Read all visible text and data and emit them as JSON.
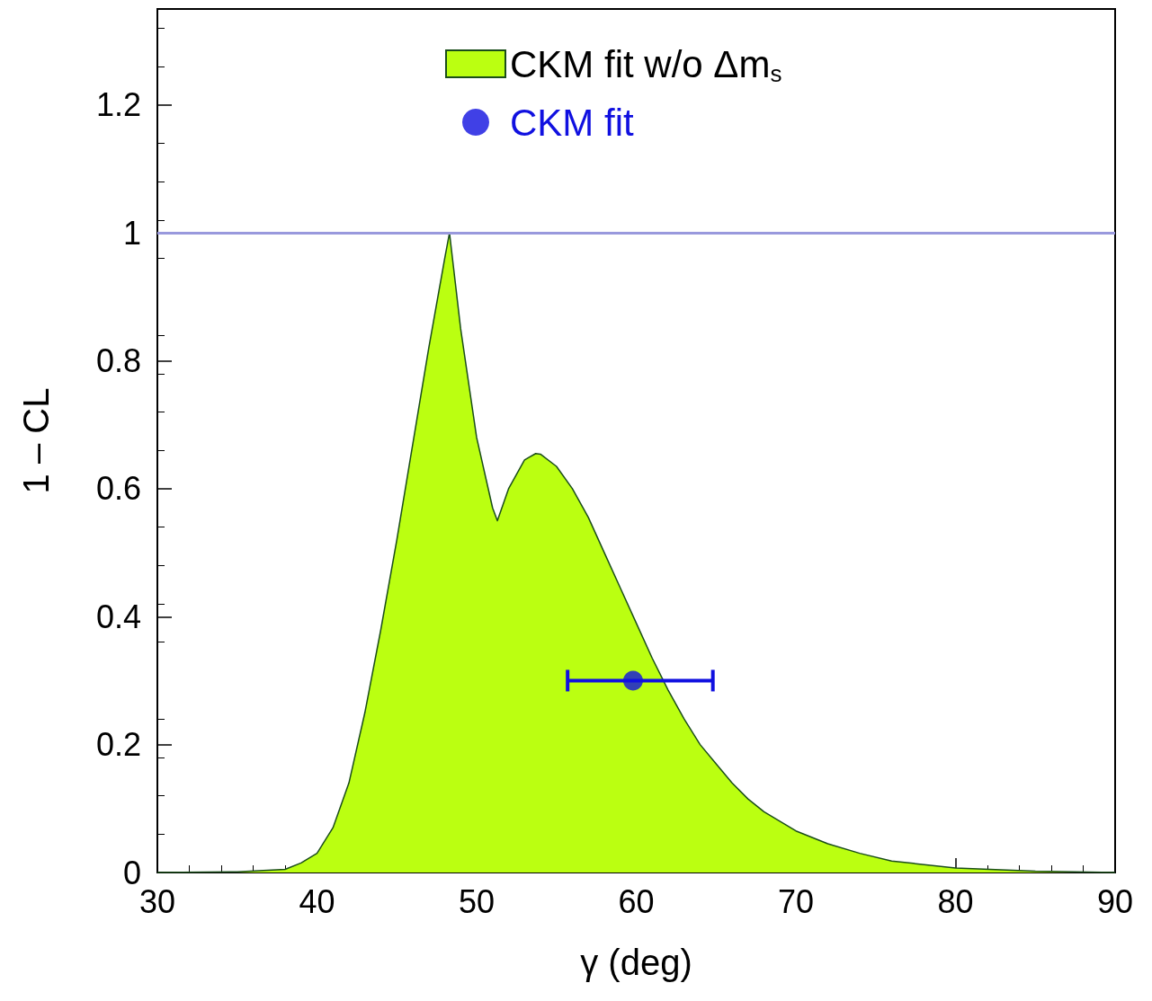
{
  "chart_data": {
    "type": "area",
    "xlabel": "γ (deg)",
    "ylabel": "1 – CL",
    "xlim": [
      30,
      90
    ],
    "xticks": [
      30,
      40,
      50,
      60,
      70,
      80,
      90
    ],
    "ylim": [
      0,
      1.35
    ],
    "yticks": [
      0,
      0.2,
      0.4,
      0.6,
      0.8,
      1,
      1.2
    ],
    "grid": false,
    "legend": "top",
    "ref_lines": [
      {
        "axis": "y",
        "value": 1,
        "color": "#9999dd"
      }
    ],
    "series": [
      {
        "name": "CKM fit w/o Δm$_{s}$",
        "type": "area",
        "color": "#bbff11",
        "x": [
          30,
          35,
          38,
          39,
          40,
          41,
          42,
          43,
          44,
          45,
          46,
          47,
          48,
          48.3,
          49,
          50,
          51,
          51.3,
          52,
          53,
          53.7,
          54,
          55,
          56,
          57,
          58,
          59,
          60,
          61,
          62,
          63,
          64,
          65,
          66,
          67,
          68,
          70,
          72,
          74,
          76,
          80,
          85,
          90
        ],
        "values": [
          0,
          0.001,
          0.005,
          0.015,
          0.03,
          0.07,
          0.14,
          0.25,
          0.38,
          0.52,
          0.67,
          0.82,
          0.96,
          1.0,
          0.85,
          0.68,
          0.57,
          0.55,
          0.6,
          0.645,
          0.655,
          0.654,
          0.635,
          0.6,
          0.555,
          0.5,
          0.445,
          0.39,
          0.335,
          0.285,
          0.24,
          0.2,
          0.17,
          0.14,
          0.115,
          0.095,
          0.065,
          0.045,
          0.03,
          0.018,
          0.007,
          0.002,
          0
        ]
      },
      {
        "name": "CKM fit",
        "type": "scatter",
        "color": "#1010e0",
        "marker": "circle",
        "x": [
          59.8
        ],
        "values": [
          0.3
        ],
        "xerrors": [
          [
            55.7,
            64.8
          ]
        ]
      }
    ]
  }
}
